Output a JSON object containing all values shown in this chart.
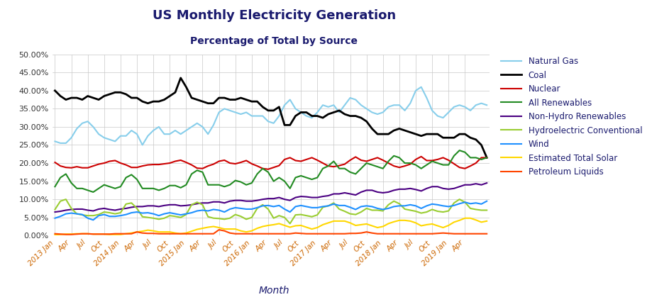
{
  "title": "US Monthly Electricity Generation",
  "subtitle": "Percentage of Total by Source",
  "xlabel": "Month",
  "ylim": [
    0.0,
    0.5
  ],
  "yticks": [
    0.0,
    0.05,
    0.1,
    0.15,
    0.2,
    0.25,
    0.3,
    0.35,
    0.4,
    0.45,
    0.5
  ],
  "title_color": "#1a1a6e",
  "subtitle_color": "#1a1a6e",
  "label_color": "#1a1a6e",
  "tick_color": "#cc6600",
  "series": {
    "Natural Gas": {
      "color": "#87CEEB",
      "linewidth": 1.5,
      "values": [
        0.26,
        0.255,
        0.255,
        0.27,
        0.295,
        0.31,
        0.315,
        0.3,
        0.28,
        0.27,
        0.265,
        0.26,
        0.275,
        0.275,
        0.29,
        0.28,
        0.25,
        0.275,
        0.29,
        0.3,
        0.28,
        0.28,
        0.29,
        0.28,
        0.29,
        0.3,
        0.31,
        0.3,
        0.28,
        0.305,
        0.34,
        0.35,
        0.345,
        0.34,
        0.335,
        0.34,
        0.33,
        0.33,
        0.33,
        0.315,
        0.31,
        0.33,
        0.36,
        0.375,
        0.35,
        0.34,
        0.33,
        0.325,
        0.34,
        0.36,
        0.355,
        0.36,
        0.34,
        0.36,
        0.38,
        0.375,
        0.36,
        0.35,
        0.34,
        0.335,
        0.34,
        0.355,
        0.36,
        0.36,
        0.345,
        0.365,
        0.4,
        0.41,
        0.38,
        0.345,
        0.33,
        0.325,
        0.34,
        0.355,
        0.36,
        0.355,
        0.345,
        0.36,
        0.365,
        0.36
      ]
    },
    "Coal": {
      "color": "#000000",
      "linewidth": 2.0,
      "values": [
        0.4,
        0.385,
        0.375,
        0.38,
        0.38,
        0.375,
        0.385,
        0.38,
        0.375,
        0.385,
        0.39,
        0.395,
        0.395,
        0.39,
        0.38,
        0.38,
        0.37,
        0.365,
        0.37,
        0.37,
        0.375,
        0.385,
        0.395,
        0.435,
        0.41,
        0.38,
        0.375,
        0.37,
        0.365,
        0.365,
        0.38,
        0.38,
        0.375,
        0.375,
        0.38,
        0.375,
        0.37,
        0.37,
        0.355,
        0.345,
        0.345,
        0.355,
        0.305,
        0.305,
        0.33,
        0.34,
        0.34,
        0.33,
        0.33,
        0.325,
        0.335,
        0.34,
        0.345,
        0.335,
        0.33,
        0.33,
        0.325,
        0.315,
        0.295,
        0.28,
        0.28,
        0.28,
        0.29,
        0.295,
        0.29,
        0.285,
        0.28,
        0.275,
        0.28,
        0.28,
        0.28,
        0.27,
        0.27,
        0.27,
        0.28,
        0.28,
        0.27,
        0.265,
        0.25,
        0.215
      ]
    },
    "Nuclear": {
      "color": "#CC0000",
      "linewidth": 1.5,
      "values": [
        0.202,
        0.192,
        0.188,
        0.187,
        0.19,
        0.187,
        0.187,
        0.192,
        0.197,
        0.2,
        0.205,
        0.207,
        0.2,
        0.195,
        0.188,
        0.188,
        0.192,
        0.195,
        0.196,
        0.196,
        0.198,
        0.2,
        0.205,
        0.208,
        0.202,
        0.195,
        0.186,
        0.185,
        0.192,
        0.197,
        0.205,
        0.208,
        0.2,
        0.198,
        0.202,
        0.207,
        0.198,
        0.192,
        0.185,
        0.183,
        0.188,
        0.193,
        0.21,
        0.215,
        0.207,
        0.205,
        0.21,
        0.215,
        0.208,
        0.2,
        0.192,
        0.19,
        0.193,
        0.197,
        0.208,
        0.217,
        0.208,
        0.205,
        0.21,
        0.215,
        0.208,
        0.2,
        0.192,
        0.188,
        0.192,
        0.197,
        0.21,
        0.218,
        0.207,
        0.207,
        0.21,
        0.215,
        0.208,
        0.198,
        0.188,
        0.185,
        0.192,
        0.2,
        0.215,
        0.215
      ]
    },
    "All Renewables": {
      "color": "#228B22",
      "linewidth": 1.5,
      "values": [
        0.135,
        0.16,
        0.17,
        0.145,
        0.13,
        0.13,
        0.125,
        0.12,
        0.13,
        0.14,
        0.135,
        0.13,
        0.135,
        0.16,
        0.168,
        0.155,
        0.13,
        0.13,
        0.13,
        0.125,
        0.13,
        0.138,
        0.138,
        0.132,
        0.14,
        0.17,
        0.18,
        0.175,
        0.14,
        0.14,
        0.14,
        0.135,
        0.14,
        0.152,
        0.148,
        0.14,
        0.145,
        0.17,
        0.185,
        0.175,
        0.15,
        0.16,
        0.15,
        0.13,
        0.16,
        0.165,
        0.16,
        0.155,
        0.16,
        0.185,
        0.192,
        0.205,
        0.185,
        0.185,
        0.175,
        0.17,
        0.185,
        0.2,
        0.195,
        0.19,
        0.185,
        0.205,
        0.22,
        0.215,
        0.2,
        0.2,
        0.195,
        0.185,
        0.195,
        0.205,
        0.2,
        0.195,
        0.195,
        0.22,
        0.235,
        0.23,
        0.215,
        0.215,
        0.21,
        0.215
      ]
    },
    "Non-Hydro Renewables": {
      "color": "#4B0082",
      "linewidth": 1.5,
      "values": [
        0.065,
        0.067,
        0.07,
        0.072,
        0.073,
        0.073,
        0.07,
        0.068,
        0.073,
        0.075,
        0.072,
        0.07,
        0.073,
        0.075,
        0.078,
        0.08,
        0.08,
        0.082,
        0.082,
        0.08,
        0.083,
        0.085,
        0.085,
        0.082,
        0.083,
        0.085,
        0.088,
        0.09,
        0.09,
        0.093,
        0.093,
        0.09,
        0.095,
        0.097,
        0.097,
        0.095,
        0.095,
        0.097,
        0.1,
        0.102,
        0.102,
        0.105,
        0.1,
        0.097,
        0.105,
        0.108,
        0.107,
        0.105,
        0.105,
        0.108,
        0.11,
        0.115,
        0.115,
        0.118,
        0.115,
        0.112,
        0.12,
        0.125,
        0.125,
        0.12,
        0.118,
        0.12,
        0.125,
        0.128,
        0.128,
        0.13,
        0.127,
        0.123,
        0.13,
        0.135,
        0.135,
        0.13,
        0.128,
        0.13,
        0.135,
        0.14,
        0.14,
        0.143,
        0.14,
        0.145
      ]
    },
    "Hydroelectric Conventional": {
      "color": "#9ACD32",
      "linewidth": 1.5,
      "values": [
        0.072,
        0.095,
        0.1,
        0.075,
        0.06,
        0.057,
        0.055,
        0.055,
        0.058,
        0.065,
        0.063,
        0.06,
        0.063,
        0.087,
        0.09,
        0.075,
        0.052,
        0.05,
        0.048,
        0.045,
        0.048,
        0.055,
        0.053,
        0.05,
        0.058,
        0.085,
        0.092,
        0.085,
        0.052,
        0.048,
        0.047,
        0.045,
        0.048,
        0.058,
        0.053,
        0.045,
        0.05,
        0.075,
        0.085,
        0.073,
        0.048,
        0.055,
        0.05,
        0.033,
        0.057,
        0.058,
        0.055,
        0.052,
        0.057,
        0.078,
        0.082,
        0.09,
        0.073,
        0.067,
        0.06,
        0.058,
        0.065,
        0.075,
        0.07,
        0.07,
        0.068,
        0.085,
        0.095,
        0.088,
        0.073,
        0.07,
        0.067,
        0.062,
        0.065,
        0.072,
        0.067,
        0.065,
        0.068,
        0.09,
        0.1,
        0.092,
        0.075,
        0.072,
        0.07,
        0.07
      ]
    },
    "Wind": {
      "color": "#1E90FF",
      "linewidth": 1.5,
      "values": [
        0.048,
        0.053,
        0.06,
        0.062,
        0.06,
        0.058,
        0.048,
        0.043,
        0.055,
        0.058,
        0.053,
        0.053,
        0.055,
        0.058,
        0.063,
        0.065,
        0.062,
        0.063,
        0.06,
        0.055,
        0.06,
        0.063,
        0.06,
        0.057,
        0.06,
        0.063,
        0.068,
        0.07,
        0.068,
        0.072,
        0.07,
        0.065,
        0.073,
        0.077,
        0.075,
        0.073,
        0.073,
        0.077,
        0.082,
        0.083,
        0.08,
        0.083,
        0.073,
        0.065,
        0.08,
        0.083,
        0.08,
        0.077,
        0.077,
        0.08,
        0.082,
        0.087,
        0.083,
        0.083,
        0.078,
        0.072,
        0.08,
        0.082,
        0.08,
        0.075,
        0.072,
        0.075,
        0.08,
        0.082,
        0.082,
        0.085,
        0.082,
        0.075,
        0.082,
        0.087,
        0.085,
        0.082,
        0.08,
        0.083,
        0.088,
        0.092,
        0.088,
        0.09,
        0.087,
        0.095
      ]
    },
    "Estimated Total Solar": {
      "color": "#FFD700",
      "linewidth": 1.5,
      "values": [
        0.002,
        0.003,
        0.004,
        0.004,
        0.005,
        0.005,
        0.005,
        0.004,
        0.004,
        0.004,
        0.003,
        0.003,
        0.003,
        0.005,
        0.007,
        0.01,
        0.012,
        0.015,
        0.013,
        0.01,
        0.01,
        0.01,
        0.007,
        0.005,
        0.007,
        0.012,
        0.017,
        0.02,
        0.023,
        0.025,
        0.022,
        0.018,
        0.018,
        0.018,
        0.013,
        0.01,
        0.013,
        0.02,
        0.025,
        0.028,
        0.03,
        0.033,
        0.028,
        0.023,
        0.027,
        0.028,
        0.023,
        0.018,
        0.022,
        0.03,
        0.035,
        0.04,
        0.04,
        0.04,
        0.035,
        0.028,
        0.03,
        0.032,
        0.027,
        0.022,
        0.025,
        0.033,
        0.038,
        0.042,
        0.042,
        0.04,
        0.035,
        0.027,
        0.03,
        0.032,
        0.027,
        0.022,
        0.028,
        0.037,
        0.042,
        0.048,
        0.048,
        0.043,
        0.037,
        0.04
      ]
    },
    "Petroleum Liquids": {
      "color": "#FF4500",
      "linewidth": 1.5,
      "values": [
        0.005,
        0.004,
        0.003,
        0.003,
        0.004,
        0.005,
        0.005,
        0.004,
        0.004,
        0.004,
        0.004,
        0.005,
        0.005,
        0.005,
        0.005,
        0.01,
        0.007,
        0.006,
        0.006,
        0.005,
        0.005,
        0.005,
        0.005,
        0.005,
        0.005,
        0.005,
        0.005,
        0.005,
        0.005,
        0.005,
        0.016,
        0.013,
        0.007,
        0.005,
        0.005,
        0.005,
        0.005,
        0.005,
        0.005,
        0.005,
        0.005,
        0.005,
        0.005,
        0.005,
        0.007,
        0.006,
        0.005,
        0.005,
        0.005,
        0.005,
        0.005,
        0.005,
        0.005,
        0.005,
        0.006,
        0.006,
        0.007,
        0.01,
        0.007,
        0.005,
        0.005,
        0.005,
        0.005,
        0.005,
        0.005,
        0.005,
        0.005,
        0.005,
        0.005,
        0.005,
        0.006,
        0.007,
        0.006,
        0.005,
        0.005,
        0.005,
        0.005,
        0.005,
        0.005,
        0.005
      ]
    }
  },
  "tick_positions": [
    0,
    3,
    6,
    9,
    12,
    15,
    18,
    21,
    24,
    27,
    30,
    33,
    36,
    39,
    42,
    45,
    48,
    51,
    54,
    57,
    60,
    63,
    66,
    69,
    72,
    75
  ],
  "tick_labels": [
    "2013 Jan",
    "Apr",
    "Jul",
    "Oct",
    "2014 Jan",
    "Apr",
    "Jul",
    "Oct",
    "2015 Jan",
    "Apr",
    "Jul",
    "Oct",
    "2016 Jan",
    "Apr",
    "Jul",
    "Oct",
    "2017 Jan",
    "Apr",
    "Jul",
    "Oct",
    "2018 Jan",
    "Apr",
    "Jul",
    "Oct",
    "2019 Jan",
    "Apr"
  ],
  "background_color": "#FFFFFF",
  "grid_color": "#C8C8C8"
}
